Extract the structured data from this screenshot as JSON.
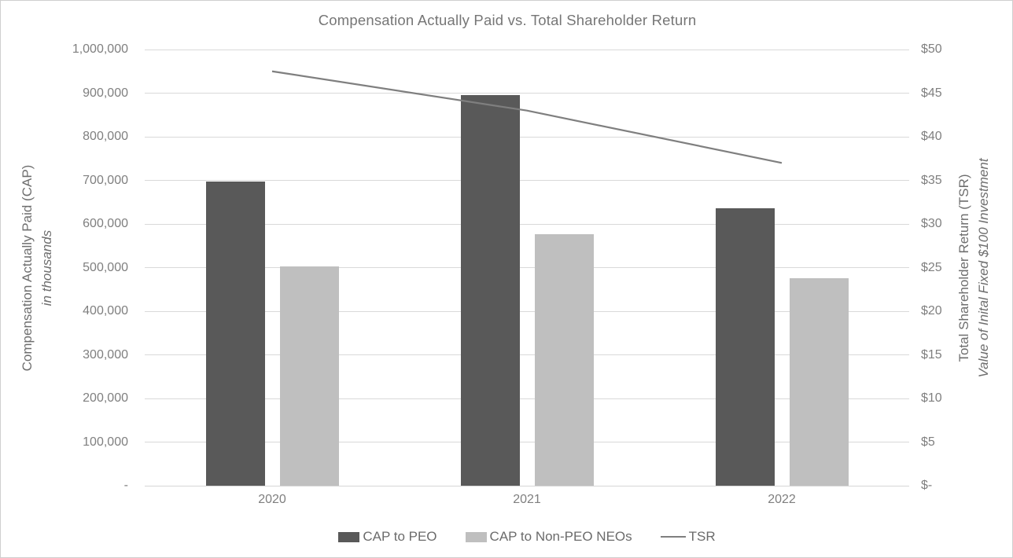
{
  "title": "Compensation Actually Paid vs. Total Shareholder Return",
  "left_axis": {
    "title_line1": "Compensation Actually Paid (CAP)",
    "title_line2": "in thousands",
    "ticks": [
      "1,000,000",
      "900,000",
      "800,000",
      "700,000",
      "600,000",
      "500,000",
      "400,000",
      "300,000",
      "200,000",
      "100,000",
      "-"
    ],
    "min": 0,
    "max": 1000000
  },
  "right_axis": {
    "title_line1": "Total Shareholder Return (TSR)",
    "title_line2": "Value of Inital Fixed $100 Investment",
    "ticks": [
      "$50",
      "$45",
      "$40",
      "$35",
      "$30",
      "$25",
      "$20",
      "$15",
      "$10",
      "$5",
      "$-"
    ],
    "min": 0,
    "max": 50
  },
  "chart_data": {
    "type": "bar",
    "title": "Compensation Actually Paid vs. Total Shareholder Return",
    "categories": [
      "2020",
      "2021",
      "2022"
    ],
    "series": [
      {
        "name": "CAP to PEO",
        "type": "bar",
        "axis": "left",
        "values": [
          697000,
          895000,
          636000
        ],
        "color": "#595959"
      },
      {
        "name": "CAP to Non-PEO NEOs",
        "type": "bar",
        "axis": "left",
        "values": [
          503000,
          577000,
          476000
        ],
        "color": "#bfbfbf"
      },
      {
        "name": "TSR",
        "type": "line",
        "axis": "right",
        "values": [
          47.5,
          43,
          37
        ],
        "color": "#7f7f7f"
      }
    ],
    "xlabel": "",
    "ylabel_left": "Compensation Actually Paid (CAP) in thousands",
    "ylabel_right": "Total Shareholder Return (TSR) Value of Inital Fixed $100 Investment",
    "ylim_left": [
      0,
      1000000
    ],
    "ylim_right": [
      0,
      50
    ],
    "grid": true,
    "legend_position": "bottom"
  },
  "colors": {
    "gridline": "#d9d9d9",
    "text": "#7f7f7f",
    "title": "#767676"
  }
}
